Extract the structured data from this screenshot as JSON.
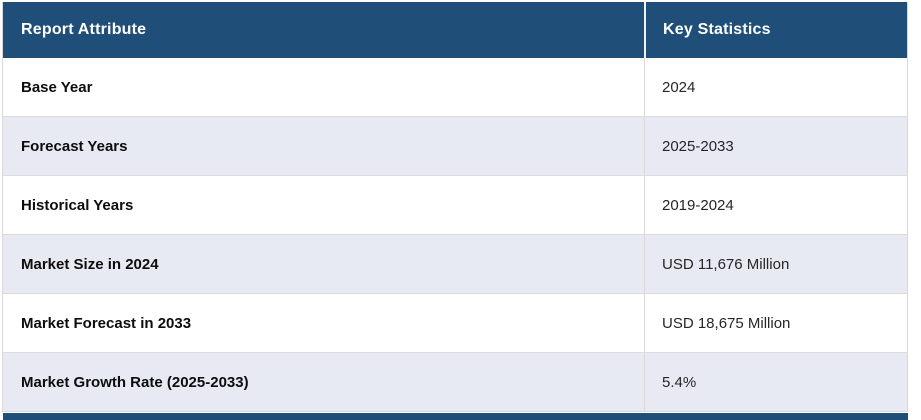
{
  "chart_data": {
    "type": "table",
    "title": "Report Attribute / Key Statistics summary table",
    "columns": [
      "Report Attribute",
      "Key Statistics"
    ],
    "rows": [
      [
        "Base Year",
        "2024"
      ],
      [
        "Forecast Years",
        "2025-2033"
      ],
      [
        "Historical Years",
        "2019-2024"
      ],
      [
        "Market Size in 2024",
        "USD 11,676 Million"
      ],
      [
        "Market Forecast in 2033",
        "USD 18,675 Million"
      ],
      [
        "Market Growth Rate (2025-2033)",
        "5.4%"
      ]
    ]
  },
  "colors": {
    "header_bg": "#1f4e79",
    "header_text": "#ffffff",
    "row_bg": "#ffffff",
    "row_alt_bg": "#e7e9f3",
    "border": "#d9d9d9",
    "attribute_text": "#0d0d0d",
    "value_text": "#262626",
    "next_section_bar": "#1f4e79"
  }
}
